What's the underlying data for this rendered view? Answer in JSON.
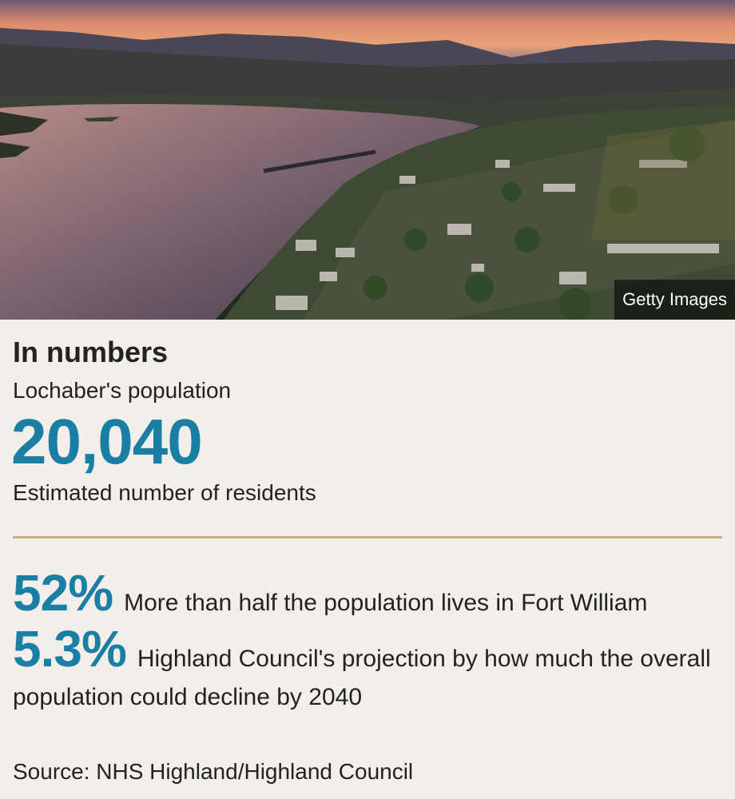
{
  "image": {
    "credit": "Getty Images"
  },
  "infobox": {
    "heading": "In numbers",
    "subheading": "Lochaber's population",
    "headline_number": "20,040",
    "headline_caption": "Estimated number of residents",
    "stats": [
      {
        "value": "52%",
        "text": "More than half the population lives in Fort William"
      },
      {
        "value": "5.3%",
        "text": "Highland Council's projection by how much the overall population could decline by 2040"
      }
    ],
    "source": "Source: NHS Highland/Highland Council"
  },
  "colors": {
    "accent": "#1a7fa3",
    "divider": "#c9b07a",
    "background": "#f2efeb"
  }
}
